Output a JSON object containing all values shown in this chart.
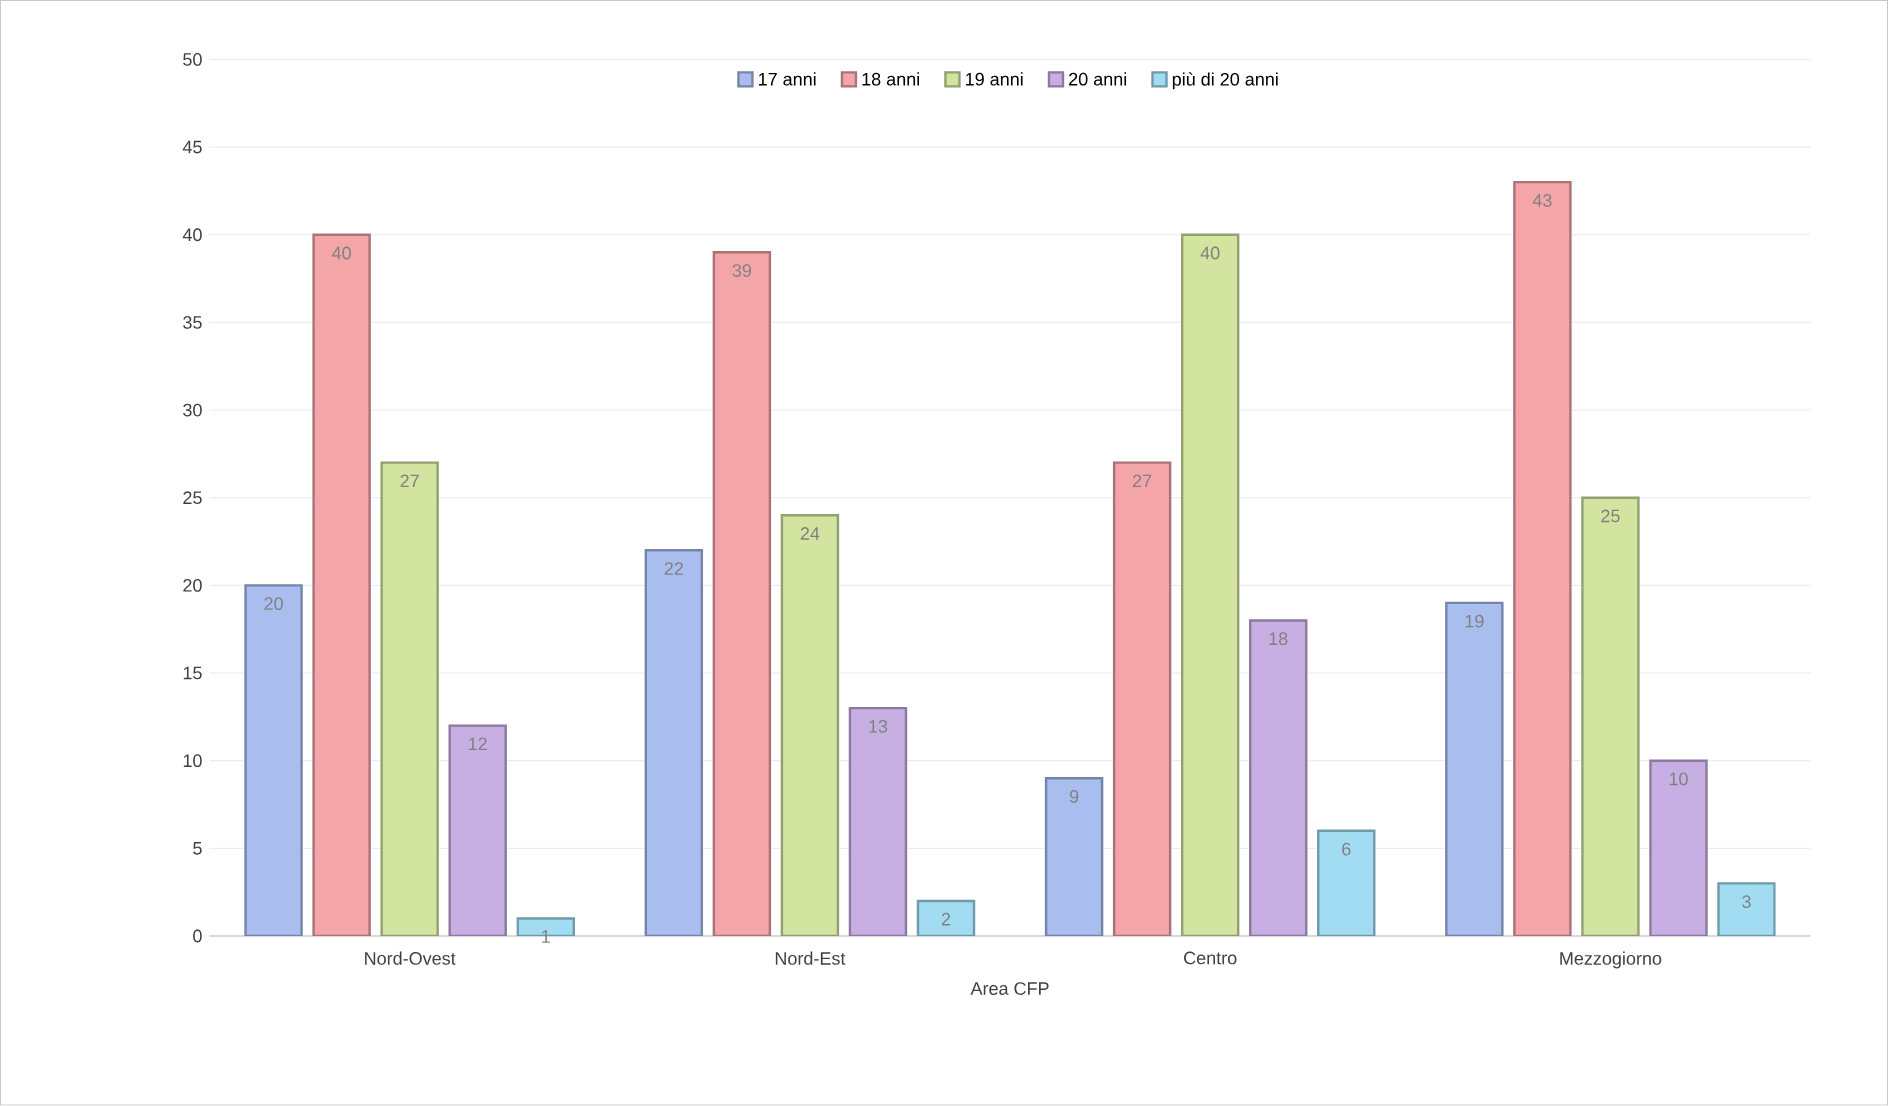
{
  "chart_data": {
    "type": "bar",
    "xlabel": "Area CFP",
    "categories": [
      "Nord-Ovest",
      "Nord-Est",
      "Centro",
      "Mezzogiorno"
    ],
    "series": [
      {
        "name": "17 anni",
        "color": "#a9bdee",
        "values": [
          20,
          22,
          9,
          19
        ]
      },
      {
        "name": "18 anni",
        "color": "#f4a5a8",
        "values": [
          40,
          39,
          27,
          43
        ]
      },
      {
        "name": "19 anni",
        "color": "#d2e4a0",
        "values": [
          27,
          24,
          40,
          25
        ]
      },
      {
        "name": "20 anni",
        "color": "#c7aee3",
        "values": [
          12,
          13,
          18,
          10
        ]
      },
      {
        "name": "più di 20 anni",
        "color": "#a2dcf2",
        "values": [
          1,
          2,
          6,
          3
        ]
      }
    ],
    "ylim": [
      0,
      50
    ],
    "yticks": [
      0,
      5,
      10,
      15,
      20,
      25,
      30,
      35,
      40,
      45,
      50
    ],
    "grid": "y",
    "legend": "top",
    "data_labels": true
  }
}
